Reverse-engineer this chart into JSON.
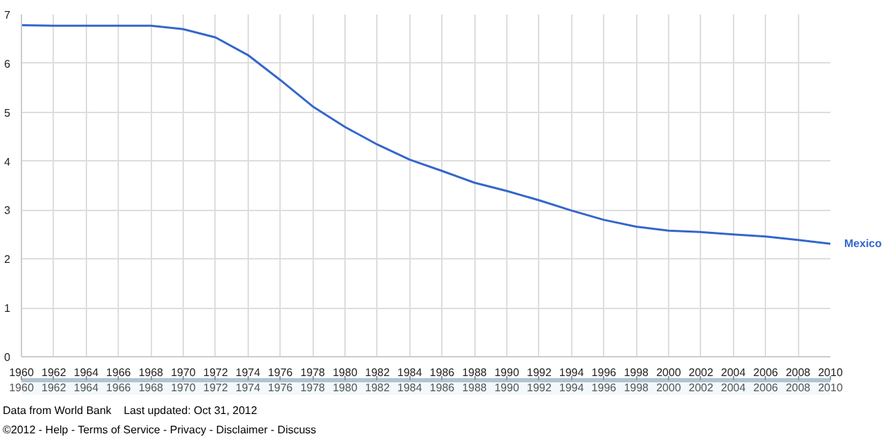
{
  "chart_data": {
    "type": "line",
    "x": [
      1960,
      1962,
      1964,
      1966,
      1968,
      1970,
      1972,
      1974,
      1976,
      1978,
      1980,
      1982,
      1984,
      1986,
      1988,
      1990,
      1992,
      1994,
      1996,
      1998,
      2000,
      2002,
      2004,
      2006,
      2008,
      2010
    ],
    "series": [
      {
        "name": "Mexico",
        "color": "#3366cc",
        "values": [
          6.78,
          6.77,
          6.77,
          6.77,
          6.77,
          6.7,
          6.53,
          6.17,
          5.66,
          5.12,
          4.7,
          4.34,
          4.03,
          3.8,
          3.56,
          3.39,
          3.2,
          2.99,
          2.8,
          2.66,
          2.58,
          2.55,
          2.5,
          2.46,
          2.39,
          2.31
        ]
      }
    ],
    "xlim": [
      1960,
      2010
    ],
    "xticks": [
      1960,
      1962,
      1964,
      1966,
      1968,
      1970,
      1972,
      1974,
      1976,
      1978,
      1980,
      1982,
      1984,
      1986,
      1988,
      1990,
      1992,
      1994,
      1996,
      1998,
      2000,
      2002,
      2004,
      2006,
      2008,
      2010
    ],
    "x2lim": [
      1960,
      2010
    ],
    "x2ticks": [
      1960,
      1962,
      1964,
      1966,
      1968,
      1970,
      1972,
      1974,
      1976,
      1978,
      1980,
      1982,
      1984,
      1986,
      1988,
      1990,
      1992,
      1994,
      1996,
      1998,
      2000,
      2002,
      2004,
      2006,
      2008,
      2010
    ],
    "ylim": [
      0,
      7
    ],
    "yticks": [
      0,
      1,
      2,
      3,
      4,
      5,
      6,
      7
    ],
    "grid": true,
    "annotations": [
      "Data from World Bank",
      "Last updated: Oct 31, 2012",
      "©2012 - Help - Terms of Service - Privacy - Disclaimer - Discuss"
    ]
  }
}
